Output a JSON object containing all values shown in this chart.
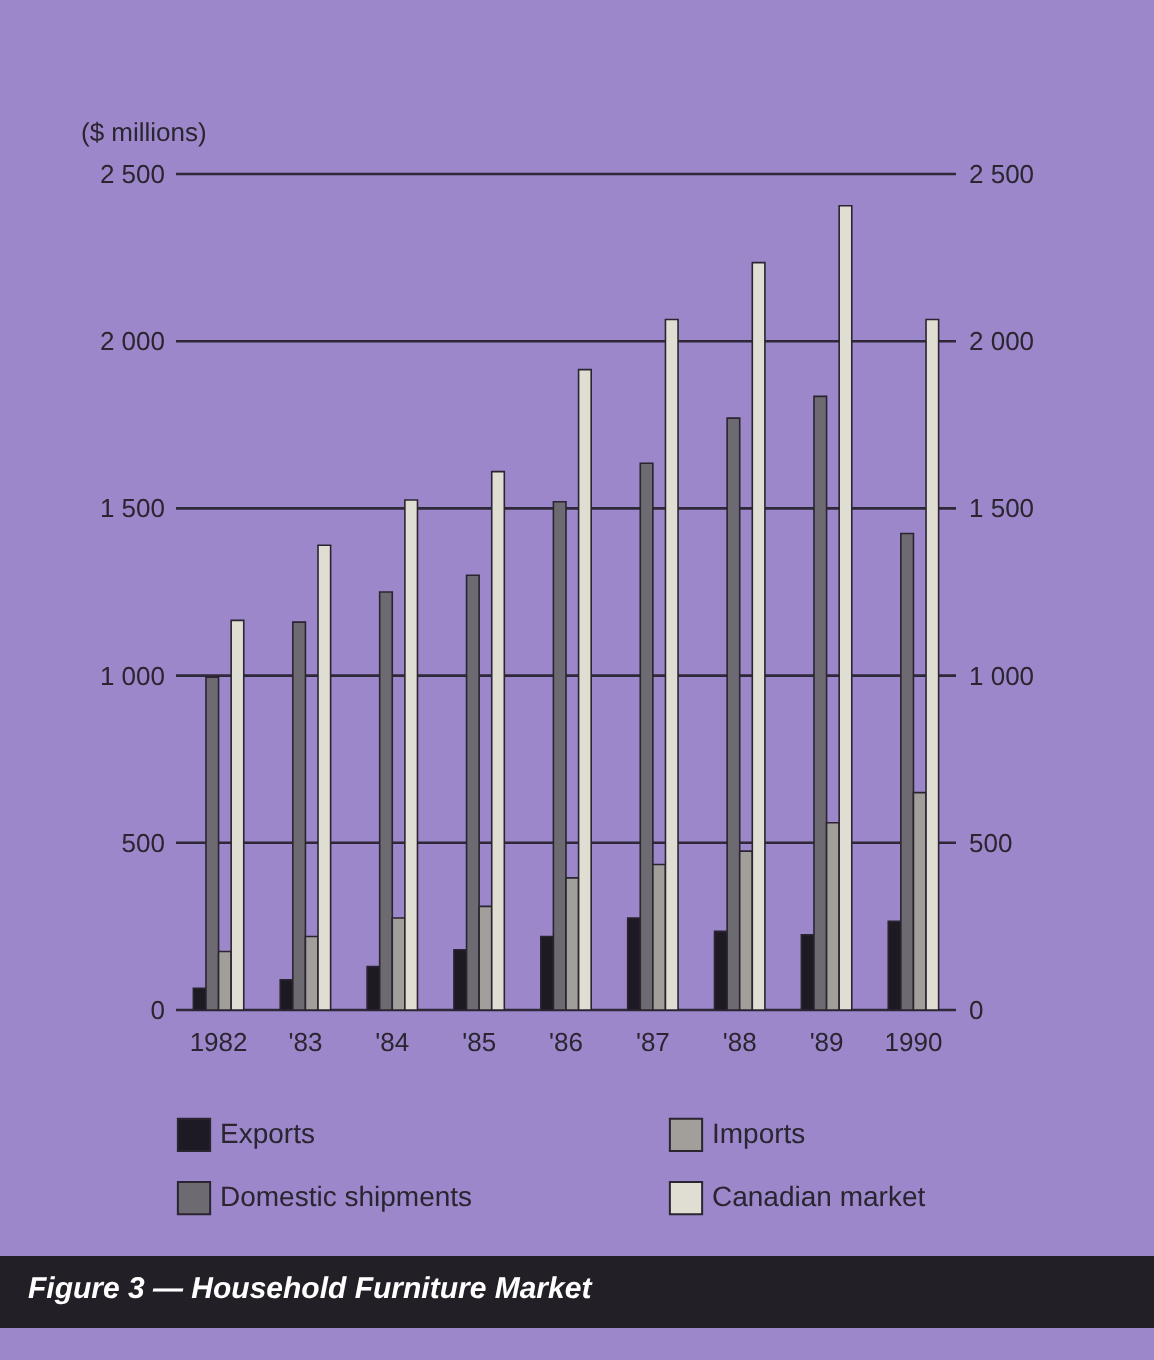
{
  "chart_data": {
    "type": "bar",
    "categories": [
      "1982",
      "'83",
      "'84",
      "'85",
      "'86",
      "'87",
      "'88",
      "'89",
      "1990"
    ],
    "series": [
      {
        "name": "Exports",
        "color": "#1e1a24",
        "values": [
          65,
          90,
          130,
          180,
          220,
          275,
          235,
          225,
          265
        ]
      },
      {
        "name": "Domestic shipments",
        "color": "#6e6a72",
        "values": [
          995,
          1160,
          1250,
          1300,
          1520,
          1635,
          1770,
          1835,
          1425
        ]
      },
      {
        "name": "Imports",
        "color": "#a29e9a",
        "values": [
          175,
          220,
          275,
          310,
          395,
          435,
          475,
          560,
          650
        ]
      },
      {
        "name": "Canadian market",
        "color": "#e0ddd2",
        "values": [
          1165,
          1390,
          1525,
          1610,
          1915,
          2065,
          2235,
          2405,
          2065
        ]
      }
    ],
    "ylabel": "($ millions)",
    "ylim": [
      0,
      2500
    ],
    "yticks": [
      0,
      {
        "value": 500,
        "label": "500"
      },
      {
        "value": 1000,
        "label": "1 000"
      },
      {
        "value": 1500,
        "label": "1 500"
      },
      {
        "value": 2000,
        "label": "2 000"
      },
      {
        "value": 2500,
        "label": "2 500"
      }
    ],
    "y2lim": [
      0,
      2500
    ],
    "y2ticks": [
      0,
      {
        "value": 500,
        "label": "500"
      },
      {
        "value": 1000,
        "label": "1 000"
      },
      {
        "value": 1500,
        "label": "1 500"
      },
      {
        "value": 2000,
        "label": "2 000"
      },
      {
        "value": 2500,
        "label": "2 500"
      }
    ],
    "grid": "y",
    "legend": "bottom",
    "annotations": [
      "Figure 3 — Household Furniture Market"
    ]
  }
}
